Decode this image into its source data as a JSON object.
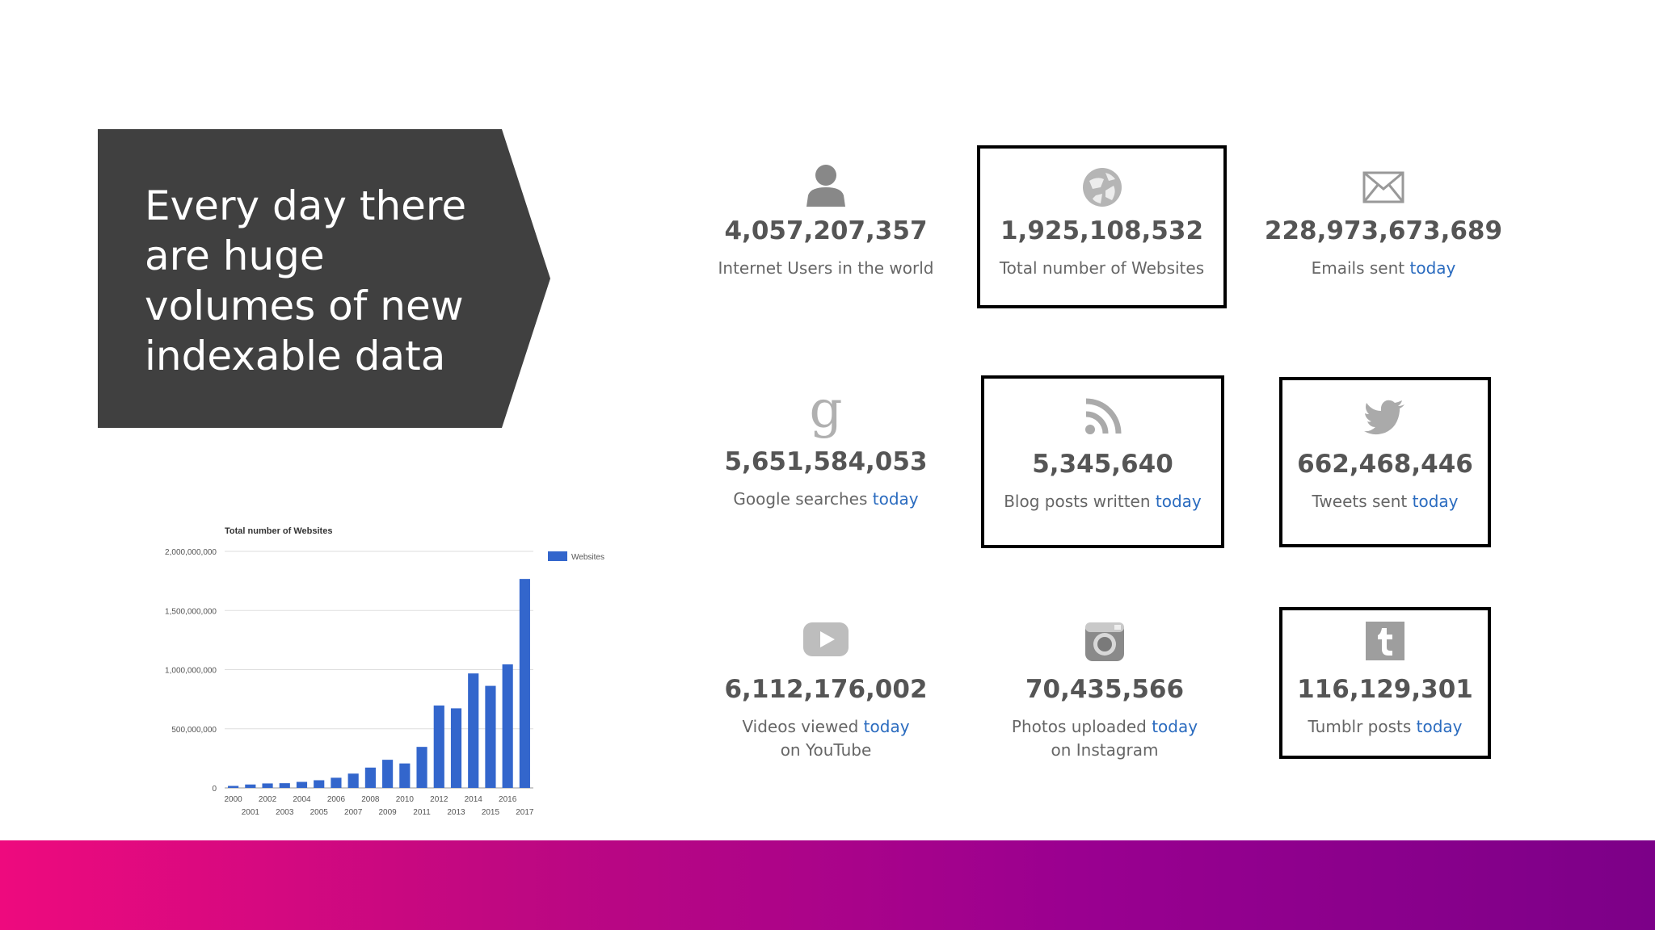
{
  "slide": {
    "callout": "Every day there are huge volumes of new indexable data"
  },
  "stats": [
    {
      "id": "internet-users",
      "icon": "person-icon",
      "value": "4,057,207,357",
      "label": "Internet Users in the world",
      "highlight": "",
      "label2": ""
    },
    {
      "id": "websites",
      "icon": "globe-icon",
      "value": "1,925,108,532",
      "label": "Total number of Websites",
      "highlight": "",
      "label2": ""
    },
    {
      "id": "emails",
      "icon": "envelope-icon",
      "value": "228,973,673,689",
      "label": "Emails sent ",
      "highlight": "today",
      "label2": ""
    },
    {
      "id": "google",
      "icon": "google-icon",
      "value": "5,651,584,053",
      "label": "Google searches ",
      "highlight": "today",
      "label2": ""
    },
    {
      "id": "blogs",
      "icon": "rss-icon",
      "value": "5,345,640",
      "label": "Blog posts written ",
      "highlight": "today",
      "label2": ""
    },
    {
      "id": "tweets",
      "icon": "twitter-bird-icon",
      "value": "662,468,446",
      "label": "Tweets sent ",
      "highlight": "today",
      "label2": ""
    },
    {
      "id": "youtube",
      "icon": "youtube-play-icon",
      "value": "6,112,176,002",
      "label": "Videos viewed ",
      "highlight": "today",
      "label2": "on YouTube"
    },
    {
      "id": "instagram",
      "icon": "camera-icon",
      "value": "70,435,566",
      "label": "Photos uploaded ",
      "highlight": "today",
      "label2": "on Instagram"
    },
    {
      "id": "tumblr",
      "icon": "tumblr-icon",
      "value": "116,129,301",
      "label": "Tumblr posts ",
      "highlight": "today",
      "label2": ""
    }
  ],
  "colors": {
    "highlight": "#2a6bbf",
    "bar": "#3366cc",
    "callout_bg": "#404040",
    "footer_start": "#ee0a7e",
    "footer_end": "#7c0088"
  },
  "chart_data": {
    "type": "bar",
    "title": "Total number of Websites",
    "xlabel": "",
    "ylabel": "",
    "legend": [
      "Websites"
    ],
    "legend_position": "right",
    "grid": true,
    "ylim": [
      0,
      2000000000
    ],
    "yticks": [
      "0",
      "500,000,000",
      "1,000,000,000",
      "1,500,000,000",
      "2,000,000,000"
    ],
    "ytick_values": [
      0,
      500000000,
      1000000000,
      1500000000,
      2000000000
    ],
    "categories": [
      "2000",
      "2001",
      "2002",
      "2003",
      "2004",
      "2005",
      "2006",
      "2007",
      "2008",
      "2009",
      "2010",
      "2011",
      "2012",
      "2013",
      "2014",
      "2015",
      "2016",
      "2017"
    ],
    "values": [
      17000000,
      29000000,
      38000000,
      40000000,
      51000000,
      65000000,
      86000000,
      121000000,
      172000000,
      238000000,
      207000000,
      347000000,
      697000000,
      673000000,
      968000000,
      863000000,
      1045000000,
      1767000000
    ]
  }
}
